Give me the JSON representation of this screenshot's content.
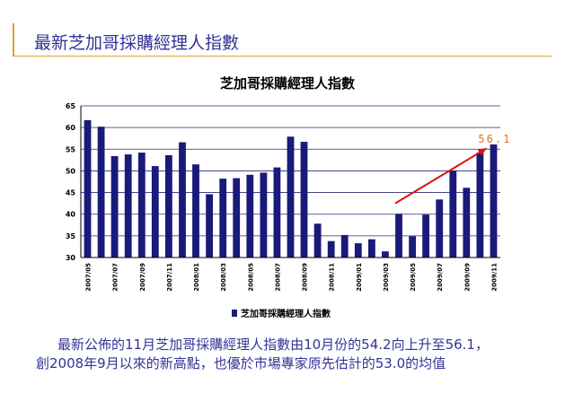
{
  "slide": {
    "title": "最新芝加哥採購經理人指數",
    "caption_line1": "最新公佈的11月芝加哥採購經理人指數由10月份的54.2向上升至56.1，",
    "caption_line2": "創2008年9月以來的新高點，也優於市場專家原先估計的53.0的均值"
  },
  "colors": {
    "accent": "#d8a23a",
    "text": "#333399",
    "bar": "#1a1a7a",
    "arrow": "#e01010",
    "annotation": "#e07020"
  },
  "chart_data": {
    "type": "bar",
    "title": "芝加哥採購經理人指數",
    "legend": {
      "label": "芝加哥採購經理人指數",
      "placement": "bottom"
    },
    "ylim": [
      30,
      65
    ],
    "yticks": [
      30,
      35,
      40,
      45,
      50,
      55,
      60,
      65
    ],
    "grid": true,
    "categories": [
      "2007/05",
      "2007/06",
      "2007/07",
      "2007/08",
      "2007/09",
      "2007/10",
      "2007/11",
      "2007/12",
      "2008/01",
      "2008/02",
      "2008/03",
      "2008/04",
      "2008/05",
      "2008/06",
      "2008/07",
      "2008/08",
      "2008/09",
      "2008/10",
      "2008/11",
      "2008/12",
      "2009/01",
      "2009/02",
      "2009/03",
      "2009/04",
      "2009/05",
      "2009/06",
      "2009/07",
      "2009/08",
      "2009/09",
      "2009/10",
      "2009/11"
    ],
    "xtick_labels": [
      "2007/05",
      "",
      "2007/07",
      "",
      "2007/09",
      "",
      "2007/11",
      "",
      "2008/01",
      "",
      "2008/03",
      "",
      "2008/05",
      "",
      "2008/07",
      "",
      "2008/09",
      "",
      "2008/11",
      "",
      "2009/01",
      "",
      "2009/03",
      "",
      "2009/05",
      "",
      "2009/07",
      "",
      "2009/09",
      "",
      "2009/11"
    ],
    "values": [
      61.7,
      60.2,
      53.4,
      53.8,
      54.2,
      51.1,
      53.6,
      56.6,
      51.5,
      44.6,
      48.2,
      48.3,
      49.1,
      49.6,
      50.8,
      57.9,
      56.7,
      37.8,
      33.8,
      35.2,
      33.3,
      34.2,
      31.4,
      40.1,
      34.9,
      39.9,
      43.4,
      50.0,
      46.1,
      54.2,
      56.1
    ],
    "annotation": {
      "text": "56.1",
      "from_category": "2009/04",
      "from_value": 42.5,
      "to_category": "2009/10",
      "to_value": 55.3
    }
  }
}
